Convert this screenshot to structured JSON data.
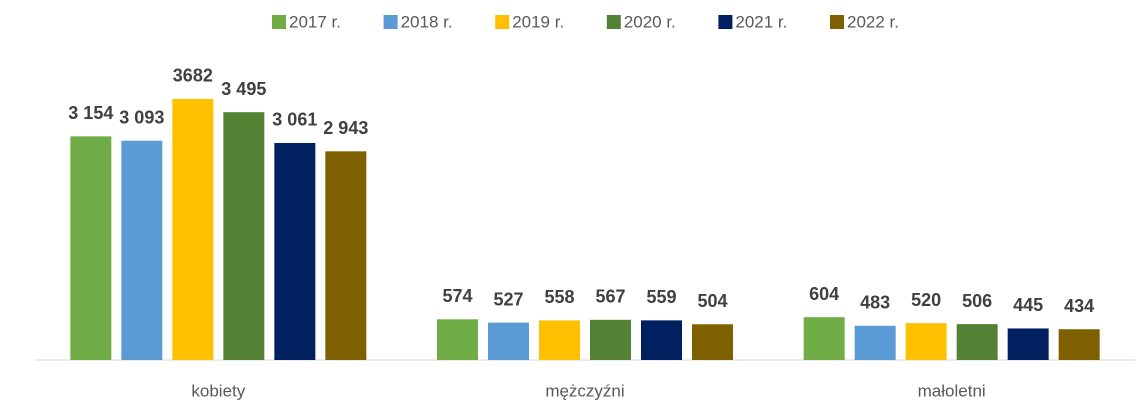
{
  "chart_data": {
    "type": "bar",
    "categories": [
      "kobiety",
      "mężczyźni",
      "małoletni"
    ],
    "series": [
      {
        "name": "2017 r.",
        "color": "#70ad47",
        "values": [
          3154,
          574,
          604
        ],
        "value_labels": [
          "3 154",
          "574",
          "604"
        ]
      },
      {
        "name": "2018 r.",
        "color": "#5b9bd5",
        "values": [
          3093,
          527,
          483
        ],
        "value_labels": [
          "3 093",
          "527",
          "483"
        ]
      },
      {
        "name": "2019 r.",
        "color": "#ffc000",
        "values": [
          3682,
          558,
          520
        ],
        "value_labels": [
          "3682",
          "558",
          "520"
        ]
      },
      {
        "name": "2020 r.",
        "color": "#548235",
        "values": [
          3495,
          567,
          506
        ],
        "value_labels": [
          "3 495",
          "567",
          "506"
        ]
      },
      {
        "name": "2021 r.",
        "color": "#002060",
        "values": [
          3061,
          559,
          445
        ],
        "value_labels": [
          "3 061",
          "559",
          "445"
        ]
      },
      {
        "name": "2022 r.",
        "color": "#7f6000",
        "values": [
          2943,
          504,
          434
        ],
        "value_labels": [
          "2 943",
          "504",
          "434"
        ]
      }
    ],
    "legend": "top"
  }
}
